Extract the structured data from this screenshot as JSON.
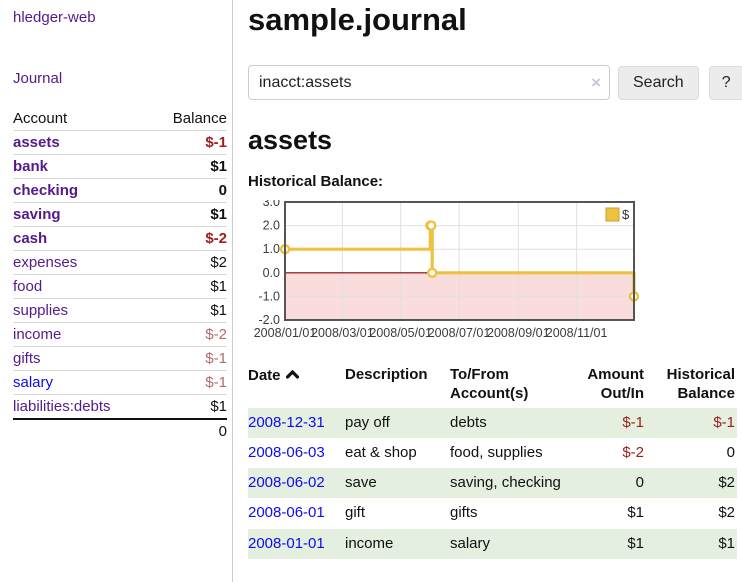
{
  "sidebar": {
    "app_title": "hledger-web",
    "nav": {
      "journal_label": "Journal"
    },
    "table": {
      "account_header": "Account",
      "balance_header": "Balance",
      "rows": [
        {
          "account": "assets",
          "indent": 1,
          "bold": true,
          "link_color": "purple",
          "balance": "$-1",
          "balance_style": "neg-strong"
        },
        {
          "account": "bank",
          "indent": 2,
          "bold": true,
          "link_color": "purple",
          "balance": "$1",
          "balance_style": ""
        },
        {
          "account": "checking",
          "indent": 3,
          "bold": true,
          "link_color": "purple",
          "balance": "0",
          "balance_style": ""
        },
        {
          "account": "saving",
          "indent": 3,
          "bold": true,
          "link_color": "purple",
          "balance": "$1",
          "balance_style": ""
        },
        {
          "account": "cash",
          "indent": 2,
          "bold": true,
          "link_color": "purple",
          "balance": "$-2",
          "balance_style": "neg-strong"
        },
        {
          "account": "expenses",
          "indent": 1,
          "bold": false,
          "link_color": "purple",
          "balance": "$2",
          "balance_style": ""
        },
        {
          "account": "food",
          "indent": 2,
          "bold": false,
          "link_color": "purple",
          "balance": "$1",
          "balance_style": ""
        },
        {
          "account": "supplies",
          "indent": 2,
          "bold": false,
          "link_color": "purple",
          "balance": "$1",
          "balance_style": ""
        },
        {
          "account": "income",
          "indent": 1,
          "bold": false,
          "link_color": "purple",
          "balance": "$-2",
          "balance_style": "neg-soft"
        },
        {
          "account": "gifts",
          "indent": 2,
          "bold": false,
          "link_color": "purple",
          "balance": "$-1",
          "balance_style": "neg-soft"
        },
        {
          "account": "salary",
          "indent": 2,
          "bold": false,
          "link_color": "blue",
          "balance": "$-1",
          "balance_style": "neg-soft"
        },
        {
          "account": "liabilities:debts",
          "indent": 1,
          "bold": false,
          "link_color": "purple",
          "balance": "$1",
          "balance_style": ""
        }
      ],
      "total": "0"
    }
  },
  "main": {
    "title": "sample.journal",
    "search": {
      "value": "inacct:assets",
      "clear_icon": "×",
      "button_label": "Search",
      "help_label": "?"
    },
    "account_heading": "assets",
    "chart_heading": "Historical Balance:",
    "register": {
      "headers": {
        "date": "Date",
        "description": "Description",
        "account": "To/From Account(s)",
        "amount": "Amount Out/In",
        "balance": "Historical Balance"
      },
      "sort": {
        "column": "date",
        "direction": "ascending"
      },
      "rows": [
        {
          "date": "2008-12-31",
          "description": "pay off",
          "accounts": "debts",
          "amount": "$-1",
          "amount_style": "neg",
          "balance": "$-1",
          "balance_style": "neg",
          "shaded": true
        },
        {
          "date": "2008-06-03",
          "description": "eat & shop",
          "accounts": "food, supplies",
          "amount": "$-2",
          "amount_style": "neg",
          "balance": "0",
          "balance_style": "",
          "shaded": false
        },
        {
          "date": "2008-06-02",
          "description": "save",
          "accounts": "saving, checking",
          "amount": "0",
          "amount_style": "",
          "balance": "$2",
          "balance_style": "",
          "shaded": true
        },
        {
          "date": "2008-06-01",
          "description": "gift",
          "accounts": "gifts",
          "amount": "$1",
          "amount_style": "",
          "balance": "$2",
          "balance_style": "",
          "shaded": false
        },
        {
          "date": "2008-01-01",
          "description": "income",
          "accounts": "salary",
          "amount": "$1",
          "amount_style": "",
          "balance": "$1",
          "balance_style": "",
          "shaded": true
        }
      ]
    }
  },
  "chart_data": {
    "type": "line",
    "step": true,
    "title": "Historical Balance",
    "series": [
      {
        "name": "$",
        "color": "#EDC240",
        "points": [
          [
            "2008-01-01",
            1
          ],
          [
            "2008-06-01",
            2
          ],
          [
            "2008-06-02",
            2
          ],
          [
            "2008-06-03",
            0
          ],
          [
            "2008-12-31",
            -1
          ]
        ]
      }
    ],
    "x_ticks": [
      "2008/01/01",
      "2008/03/01",
      "2008/05/01",
      "2008/07/01",
      "2008/09/01",
      "2008/11/01"
    ],
    "y_ticks": [
      3.0,
      2.0,
      1.0,
      0.0,
      -1.0,
      -2.0
    ],
    "x_range": [
      "2008-01-01",
      "2008-12-31"
    ],
    "ylim": [
      -2,
      3
    ],
    "grid": true,
    "legend": {
      "label": "$",
      "position": "top-right"
    },
    "negative_region_color": "#f9dcdc",
    "zero_line_color": "#8b0000"
  },
  "colors": {
    "link_purple": "#551a8b",
    "link_blue": "#0c0cee",
    "negative_strong": "#a31d1d",
    "negative_soft": "#b36b6b",
    "register_negative": "#9d1c1c",
    "row_shade_green": "#e4efdf",
    "chart_line_gold": "#EDC240",
    "chart_negative_fill": "#f9dcdc",
    "chart_zero_line": "#8b0000",
    "chart_border": "#555555"
  }
}
